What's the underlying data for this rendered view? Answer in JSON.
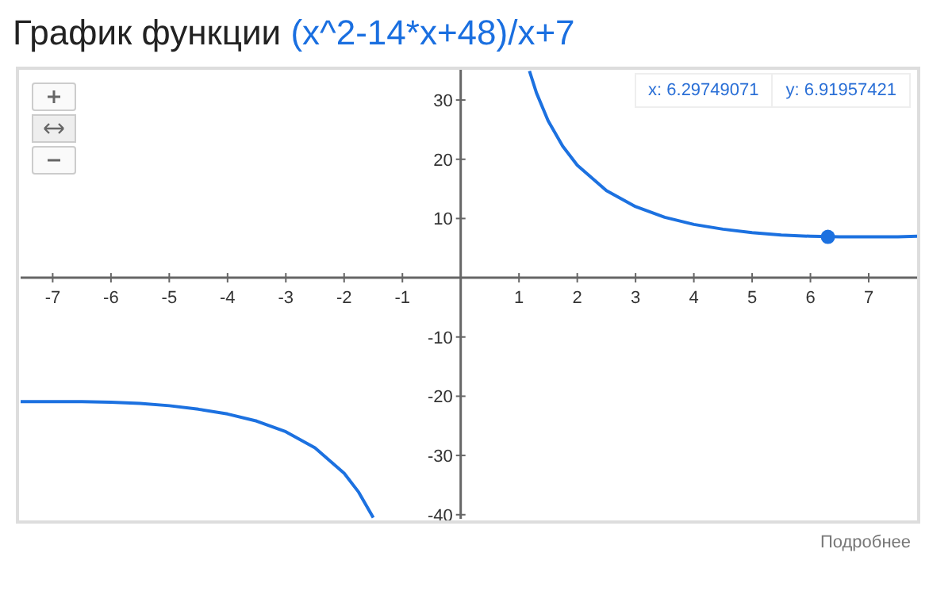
{
  "chart_data": {
    "type": "line",
    "title": "График функции (x^2-14*x+48)/x+7",
    "series": [
      {
        "color": "#1c71e0",
        "x": [
          -7.55,
          -7,
          -6.5,
          -6,
          -5.5,
          -5,
          -4.5,
          -4,
          -3.5,
          -3,
          -2.5,
          -2,
          -1.75,
          -1.5
        ],
        "values": [
          -20.9,
          -20.9,
          -20.9,
          -21,
          -21.2,
          -21.6,
          -22.2,
          -23,
          -24.2,
          -26,
          -28.7,
          -33,
          -36.2,
          -40.5
        ]
      },
      {
        "color": "#1c71e0",
        "x": [
          1.18,
          1.3,
          1.5,
          1.75,
          2,
          2.5,
          3,
          3.5,
          4,
          4.5,
          5,
          5.5,
          6,
          6.5,
          7,
          7.5,
          7.83
        ],
        "values": [
          34.9,
          31.2,
          26.5,
          22.2,
          19,
          14.7,
          12,
          10.2,
          9,
          8.2,
          7.6,
          7.2,
          7,
          6.9,
          6.9,
          6.9,
          7
        ]
      },
      {
        "type": "scatter",
        "marker": "circle",
        "color": "#1c71e0",
        "x": [
          6.3
        ],
        "values": [
          6.9
        ]
      }
    ],
    "xlim": [
      -7.55,
      7.83
    ],
    "xticks": [
      -7,
      -6,
      -5,
      -4,
      -3,
      -2,
      -1,
      1,
      2,
      3,
      4,
      5,
      6,
      7
    ],
    "ylim": [
      -40.7,
      35.1
    ],
    "yticks": [
      -40,
      -30,
      -20,
      -10,
      10,
      20,
      30
    ],
    "grid": false,
    "line_style": "solid",
    "annotations": [
      "x: 6.29749071",
      "y: 6.91957421",
      "Подробнее"
    ]
  }
}
